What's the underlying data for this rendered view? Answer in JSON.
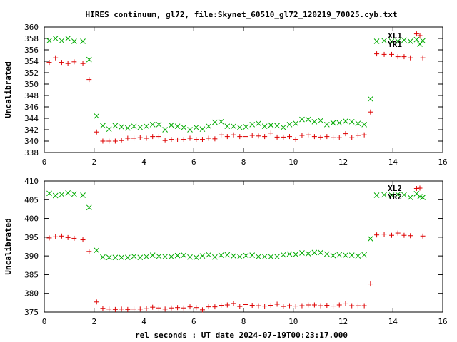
{
  "title": "HIRES continuum, gl72, file:Skynet_60510_gl72_120219_70025.cyb.txt",
  "xlabel": "rel seconds : UT date 2024-07-19T00:23:17.000",
  "colors": {
    "red": "#dd0000",
    "green": "#00aa00",
    "frame": "#000000"
  },
  "chart_data": [
    {
      "type": "scatter",
      "ylabel": "Uncalibrated",
      "xlim": [
        0,
        16
      ],
      "ylim": [
        338,
        360
      ],
      "xticks": [
        0,
        2,
        4,
        6,
        8,
        10,
        12,
        14,
        16
      ],
      "yticks": [
        338,
        340,
        342,
        344,
        346,
        348,
        350,
        352,
        354,
        356,
        358,
        360
      ],
      "grid": false,
      "legend_position": "top-right",
      "series": [
        {
          "name": "XL1",
          "marker": "plus",
          "color": "#dd0000",
          "x": [
            0.2,
            0.45,
            0.7,
            0.95,
            1.2,
            1.55,
            1.8,
            2.1,
            2.35,
            2.6,
            2.85,
            3.1,
            3.35,
            3.6,
            3.85,
            4.1,
            4.35,
            4.6,
            4.85,
            5.1,
            5.35,
            5.6,
            5.85,
            6.1,
            6.35,
            6.6,
            6.85,
            7.1,
            7.35,
            7.6,
            7.85,
            8.1,
            8.35,
            8.6,
            8.85,
            9.1,
            9.35,
            9.6,
            9.85,
            10.1,
            10.35,
            10.6,
            10.85,
            11.1,
            11.35,
            11.6,
            11.85,
            12.1,
            12.35,
            12.6,
            12.85,
            13.1,
            13.35,
            13.65,
            13.95,
            14.2,
            14.45,
            14.7,
            14.95,
            15.2
          ],
          "y": [
            353.8,
            354.6,
            353.8,
            353.6,
            353.9,
            353.6,
            350.8,
            341.6,
            340.0,
            340.0,
            340.0,
            340.1,
            340.5,
            340.5,
            340.6,
            340.5,
            340.8,
            340.8,
            340.1,
            340.3,
            340.2,
            340.3,
            340.5,
            340.3,
            340.3,
            340.5,
            340.4,
            341.1,
            340.8,
            341.1,
            340.8,
            340.8,
            341.0,
            340.9,
            340.8,
            341.4,
            340.7,
            340.7,
            340.8,
            340.3,
            341.0,
            341.1,
            340.8,
            340.7,
            340.8,
            340.6,
            340.6,
            341.3,
            340.6,
            341.0,
            341.1,
            345.1,
            355.3,
            355.2,
            355.2,
            354.8,
            354.8,
            354.6,
            358.8,
            354.6
          ]
        },
        {
          "name": "YR1",
          "marker": "cross",
          "color": "#00aa00",
          "x": [
            0.2,
            0.45,
            0.7,
            0.95,
            1.2,
            1.55,
            1.8,
            2.1,
            2.35,
            2.6,
            2.85,
            3.1,
            3.35,
            3.6,
            3.85,
            4.1,
            4.35,
            4.6,
            4.85,
            5.1,
            5.35,
            5.6,
            5.85,
            6.1,
            6.35,
            6.6,
            6.85,
            7.1,
            7.35,
            7.6,
            7.85,
            8.1,
            8.35,
            8.6,
            8.85,
            9.1,
            9.35,
            9.6,
            9.85,
            10.1,
            10.35,
            10.6,
            10.85,
            11.1,
            11.35,
            11.6,
            11.85,
            12.1,
            12.35,
            12.6,
            12.85,
            13.1,
            13.35,
            13.65,
            13.95,
            14.2,
            14.45,
            14.7,
            14.95,
            15.2
          ],
          "y": [
            357.6,
            358.0,
            357.6,
            358.0,
            357.5,
            357.5,
            354.3,
            344.4,
            342.7,
            342.1,
            342.7,
            342.5,
            342.3,
            342.6,
            342.4,
            342.6,
            342.9,
            342.9,
            342.0,
            342.8,
            342.6,
            342.4,
            342.0,
            342.4,
            342.1,
            342.6,
            343.3,
            343.4,
            342.6,
            342.6,
            342.4,
            342.5,
            342.9,
            343.1,
            342.6,
            342.8,
            342.7,
            342.4,
            342.9,
            343.1,
            343.8,
            343.8,
            343.4,
            343.6,
            342.9,
            343.2,
            343.2,
            343.5,
            343.4,
            343.1,
            342.9,
            347.4,
            357.5,
            357.6,
            357.5,
            357.5,
            357.7,
            357.5,
            357.8,
            357.6
          ]
        }
      ]
    },
    {
      "type": "scatter",
      "ylabel": "Uncalibrated",
      "xlim": [
        0,
        16
      ],
      "ylim": [
        375,
        410
      ],
      "xticks": [
        0,
        2,
        4,
        6,
        8,
        10,
        12,
        14,
        16
      ],
      "yticks": [
        375,
        380,
        385,
        390,
        395,
        400,
        405,
        410
      ],
      "grid": false,
      "legend_position": "top-right",
      "series": [
        {
          "name": "XL2",
          "marker": "plus",
          "color": "#dd0000",
          "x": [
            0.2,
            0.45,
            0.7,
            0.95,
            1.2,
            1.55,
            1.8,
            2.1,
            2.35,
            2.6,
            2.85,
            3.1,
            3.35,
            3.6,
            3.85,
            4.1,
            4.35,
            4.6,
            4.85,
            5.1,
            5.35,
            5.6,
            5.85,
            6.1,
            6.35,
            6.6,
            6.85,
            7.1,
            7.35,
            7.6,
            7.85,
            8.1,
            8.35,
            8.6,
            8.85,
            9.1,
            9.35,
            9.6,
            9.85,
            10.1,
            10.35,
            10.6,
            10.85,
            11.1,
            11.35,
            11.6,
            11.85,
            12.1,
            12.35,
            12.6,
            12.85,
            13.1,
            13.35,
            13.65,
            13.95,
            14.2,
            14.45,
            14.7,
            14.95,
            15.2
          ],
          "y": [
            394.8,
            395.1,
            395.3,
            394.9,
            394.7,
            394.3,
            391.2,
            377.7,
            376.0,
            375.8,
            375.7,
            375.8,
            375.7,
            375.8,
            375.8,
            375.9,
            376.3,
            376.1,
            375.8,
            376.1,
            376.2,
            376.1,
            376.4,
            376.2,
            375.6,
            376.4,
            376.4,
            376.8,
            376.9,
            377.3,
            376.5,
            377.0,
            376.8,
            376.7,
            376.6,
            376.8,
            377.1,
            376.5,
            376.7,
            376.6,
            376.7,
            376.9,
            376.9,
            376.7,
            376.8,
            376.6,
            376.9,
            377.2,
            376.7,
            376.7,
            376.7,
            382.5,
            395.6,
            395.8,
            395.5,
            396.1,
            395.5,
            395.4,
            408.0,
            395.3
          ]
        },
        {
          "name": "YR2",
          "marker": "cross",
          "color": "#00aa00",
          "x": [
            0.2,
            0.45,
            0.7,
            0.95,
            1.2,
            1.55,
            1.8,
            2.1,
            2.35,
            2.6,
            2.85,
            3.1,
            3.35,
            3.6,
            3.85,
            4.1,
            4.35,
            4.6,
            4.85,
            5.1,
            5.35,
            5.6,
            5.85,
            6.1,
            6.35,
            6.6,
            6.85,
            7.1,
            7.35,
            7.6,
            7.85,
            8.1,
            8.35,
            8.6,
            8.85,
            9.1,
            9.35,
            9.6,
            9.85,
            10.1,
            10.35,
            10.6,
            10.85,
            11.1,
            11.35,
            11.6,
            11.85,
            12.1,
            12.35,
            12.6,
            12.85,
            13.1,
            13.35,
            13.65,
            13.95,
            14.2,
            14.45,
            14.7,
            14.95,
            15.2
          ],
          "y": [
            406.7,
            406.1,
            406.4,
            406.8,
            406.5,
            406.2,
            402.9,
            391.5,
            389.7,
            389.6,
            389.6,
            389.6,
            389.6,
            389.9,
            389.6,
            389.8,
            390.2,
            389.9,
            389.8,
            389.8,
            390.1,
            390.2,
            389.7,
            389.6,
            390.0,
            390.3,
            389.7,
            390.2,
            390.3,
            390.0,
            389.8,
            390.1,
            390.2,
            389.8,
            389.8,
            389.8,
            389.8,
            390.3,
            390.5,
            390.4,
            390.8,
            390.6,
            390.9,
            390.9,
            390.5,
            390.1,
            390.3,
            390.2,
            390.2,
            390.0,
            390.3,
            394.6,
            406.2,
            406.3,
            406.2,
            406.4,
            406.3,
            405.6,
            406.6,
            405.6
          ]
        }
      ]
    }
  ]
}
